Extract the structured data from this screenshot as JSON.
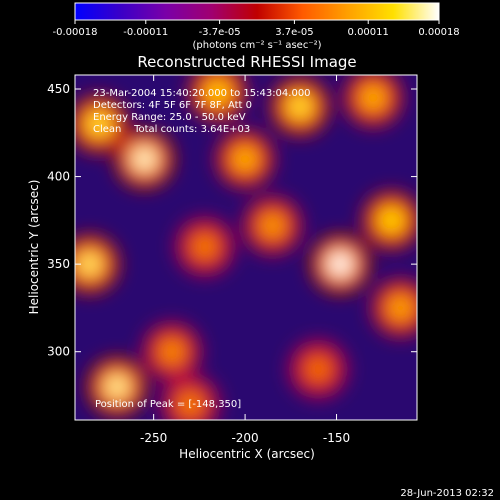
{
  "colorbar": {
    "tick_labels": [
      "-0.00018",
      "-0.00011",
      "-3.7e-05",
      "3.7e-05",
      "0.00011",
      "0.00018"
    ],
    "tick_values": [
      -0.00018,
      -0.00011,
      -3.7e-05,
      3.7e-05,
      0.00011,
      0.00018
    ],
    "range": [
      -0.00018,
      0.00018
    ],
    "units_label": "(photons cm⁻² s⁻¹ asec⁻²)",
    "colormap": [
      "#0000ff",
      "#3a00c8",
      "#7a00a8",
      "#a00070",
      "#c00000",
      "#ff5a00",
      "#ffa000",
      "#ffe000",
      "#ffffff"
    ]
  },
  "annotations": {
    "time_range": "23-Mar-2004 15:40:20.000 to 15:43:04.000",
    "detectors": "Detectors: 4F 5F 6F 7F 8F, Att 0",
    "energy_range": "Energy Range: 25.0 - 50.0 keV",
    "algorithm": "Clean    Total counts: 3.64E+03",
    "peak_position": "Position of Peak = [-148,350]"
  },
  "footer": {
    "date_stamp": "28-Jun-2013 02:32"
  },
  "chart_data": {
    "type": "heatmap",
    "title": "Reconstructed RHESSI Image",
    "xlabel": "Heliocentric X (arcsec)",
    "ylabel": "Heliocentric Y (arcsec)",
    "xlim": [
      -293,
      -106
    ],
    "ylim": [
      261,
      458
    ],
    "x_ticks": [
      -250,
      -200,
      -150
    ],
    "x_tick_labels": [
      "-250",
      "-200",
      "-150"
    ],
    "y_ticks": [
      300,
      350,
      400,
      450
    ],
    "y_tick_labels": [
      "300",
      "350",
      "400",
      "450"
    ],
    "peak": {
      "x": -148,
      "y": 350
    },
    "emission_blobs": [
      {
        "x": -280,
        "y": 430,
        "intensity": 0.8
      },
      {
        "x": -255,
        "y": 410,
        "intensity": 0.95
      },
      {
        "x": -215,
        "y": 448,
        "intensity": 0.7
      },
      {
        "x": -170,
        "y": 440,
        "intensity": 0.8
      },
      {
        "x": -130,
        "y": 445,
        "intensity": 0.6
      },
      {
        "x": -285,
        "y": 350,
        "intensity": 0.85
      },
      {
        "x": -270,
        "y": 280,
        "intensity": 0.9
      },
      {
        "x": -240,
        "y": 300,
        "intensity": 0.45
      },
      {
        "x": -148,
        "y": 350,
        "intensity": 1.0
      },
      {
        "x": -120,
        "y": 375,
        "intensity": 0.75
      },
      {
        "x": -115,
        "y": 325,
        "intensity": 0.55
      },
      {
        "x": -185,
        "y": 372,
        "intensity": 0.5
      },
      {
        "x": -200,
        "y": 410,
        "intensity": 0.6
      },
      {
        "x": -222,
        "y": 360,
        "intensity": 0.4
      },
      {
        "x": -160,
        "y": 290,
        "intensity": 0.35
      },
      {
        "x": -230,
        "y": 270,
        "intensity": 0.4
      }
    ],
    "background_level": -0.35
  }
}
